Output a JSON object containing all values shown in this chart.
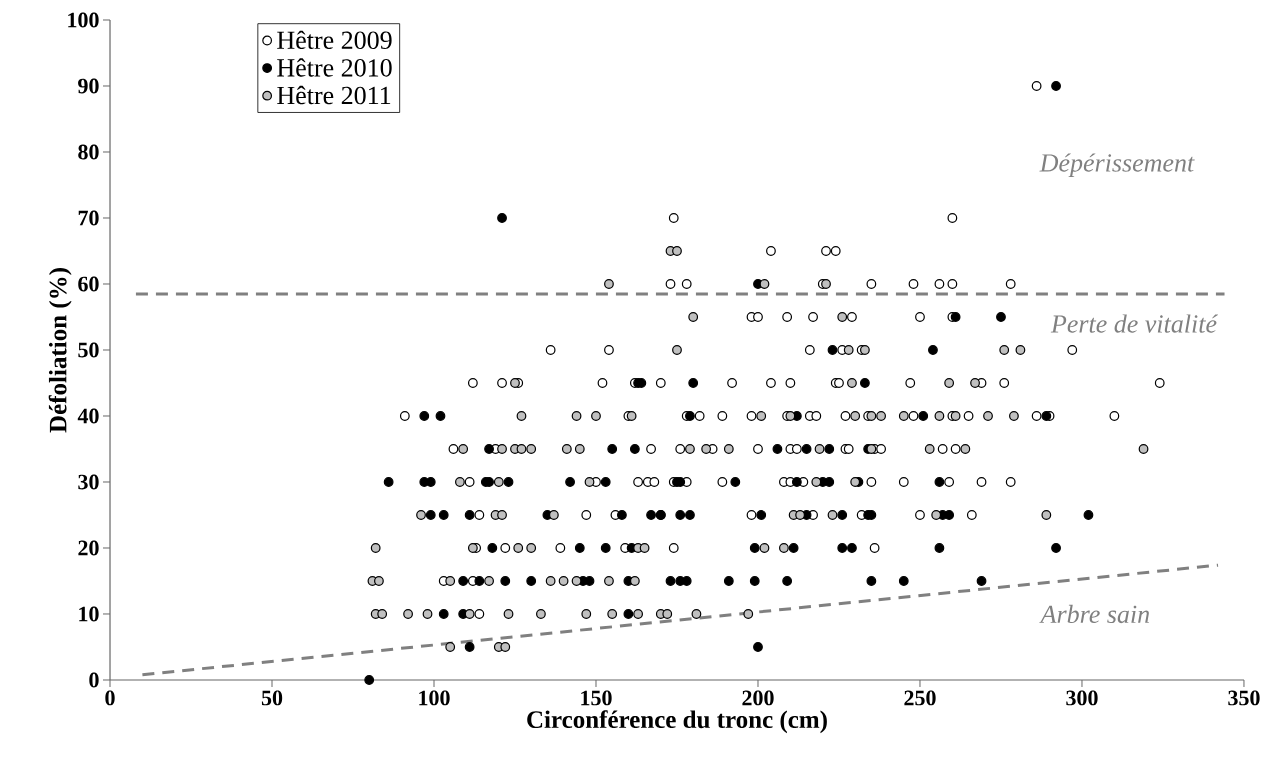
{
  "chart_data": {
    "type": "scatter",
    "xlabel": "Circonférence du tronc (cm)",
    "ylabel": "Défoliation (%)",
    "xlim": [
      0,
      350
    ],
    "ylim": [
      0,
      100
    ],
    "xticks": [
      0,
      50,
      100,
      150,
      200,
      250,
      300,
      350
    ],
    "yticks": [
      0,
      10,
      20,
      30,
      40,
      50,
      60,
      70,
      80,
      90,
      100
    ],
    "grid": false,
    "legend": "top left",
    "series": [
      {
        "name": "Hêtre 2009",
        "marker": "circle",
        "color": "#ffffff",
        "x": [
          286,
          174,
          260,
          204,
          221,
          224,
          173,
          178,
          220,
          235,
          248,
          256,
          260,
          278,
          198,
          200,
          209,
          217,
          229,
          250,
          260,
          136,
          154,
          216,
          226,
          232,
          297,
          112,
          121,
          126,
          152,
          162,
          170,
          192,
          204,
          210,
          224,
          225,
          247,
          269,
          276,
          324,
          91,
          160,
          178,
          182,
          189,
          198,
          209,
          216,
          218,
          227,
          234,
          248,
          260,
          265,
          286,
          290,
          310,
          106,
          119,
          167,
          176,
          186,
          200,
          210,
          212,
          227,
          228,
          236,
          238,
          257,
          261,
          111,
          150,
          163,
          166,
          168,
          174,
          178,
          189,
          208,
          210,
          214,
          235,
          245,
          259,
          269,
          278,
          114,
          147,
          156,
          170,
          198,
          217,
          232,
          250,
          266,
          113,
          122,
          139,
          159,
          174,
          236,
          103,
          112,
          114
        ],
        "values": [
          90,
          70,
          70,
          65,
          65,
          65,
          60,
          60,
          60,
          60,
          60,
          60,
          60,
          60,
          55,
          55,
          55,
          55,
          55,
          55,
          55,
          50,
          50,
          50,
          50,
          50,
          50,
          45,
          45,
          45,
          45,
          45,
          45,
          45,
          45,
          45,
          45,
          45,
          45,
          45,
          45,
          45,
          40,
          40,
          40,
          40,
          40,
          40,
          40,
          40,
          40,
          40,
          40,
          40,
          40,
          40,
          40,
          40,
          40,
          35,
          35,
          35,
          35,
          35,
          35,
          35,
          35,
          35,
          35,
          35,
          35,
          35,
          35,
          30,
          30,
          30,
          30,
          30,
          30,
          30,
          30,
          30,
          30,
          30,
          30,
          30,
          30,
          30,
          30,
          25,
          25,
          25,
          25,
          25,
          25,
          25,
          25,
          25,
          20,
          20,
          20,
          20,
          20,
          20,
          15,
          15,
          10
        ]
      },
      {
        "name": "Hêtre 2010",
        "marker": "circle",
        "color": "#000000",
        "x": [
          292,
          121,
          200,
          261,
          275,
          223,
          254,
          163,
          164,
          180,
          233,
          97,
          102,
          179,
          212,
          251,
          289,
          117,
          155,
          162,
          206,
          215,
          222,
          234,
          86,
          97,
          99,
          116,
          117,
          123,
          142,
          153,
          175,
          176,
          193,
          212,
          220,
          222,
          231,
          256,
          99,
          103,
          111,
          135,
          158,
          167,
          170,
          176,
          179,
          201,
          215,
          226,
          234,
          235,
          257,
          259,
          302,
          118,
          145,
          153,
          161,
          199,
          211,
          226,
          229,
          256,
          292,
          109,
          114,
          122,
          130,
          146,
          148,
          160,
          173,
          176,
          178,
          191,
          199,
          209,
          235,
          245,
          269,
          103,
          109,
          160,
          111,
          200,
          80
        ],
        "values": [
          90,
          70,
          60,
          55,
          55,
          50,
          50,
          45,
          45,
          45,
          45,
          40,
          40,
          40,
          40,
          40,
          40,
          35,
          35,
          35,
          35,
          35,
          35,
          35,
          30,
          30,
          30,
          30,
          30,
          30,
          30,
          30,
          30,
          30,
          30,
          30,
          30,
          30,
          30,
          30,
          25,
          25,
          25,
          25,
          25,
          25,
          25,
          25,
          25,
          25,
          25,
          25,
          25,
          25,
          25,
          25,
          25,
          20,
          20,
          20,
          20,
          20,
          20,
          20,
          20,
          20,
          20,
          15,
          15,
          15,
          15,
          15,
          15,
          15,
          15,
          15,
          15,
          15,
          15,
          15,
          15,
          15,
          15,
          10,
          10,
          10,
          5,
          5,
          0
        ]
      },
      {
        "name": "Hêtre 2011",
        "marker": "circle",
        "color": "#c0c0c0",
        "x": [
          173,
          175,
          154,
          202,
          221,
          180,
          226,
          175,
          228,
          233,
          276,
          281,
          125,
          229,
          259,
          267,
          127,
          144,
          150,
          161,
          201,
          210,
          230,
          235,
          238,
          245,
          256,
          261,
          271,
          279,
          109,
          121,
          125,
          127,
          130,
          141,
          145,
          179,
          184,
          191,
          219,
          235,
          253,
          264,
          319,
          108,
          120,
          148,
          218,
          230,
          96,
          119,
          121,
          137,
          211,
          213,
          223,
          255,
          289,
          82,
          112,
          126,
          130,
          163,
          165,
          202,
          208,
          81,
          83,
          105,
          117,
          136,
          140,
          144,
          154,
          162,
          82,
          84,
          92,
          98,
          111,
          123,
          133,
          147,
          155,
          163,
          170,
          172,
          181,
          197,
          105,
          120,
          122
        ],
        "values": [
          65,
          65,
          60,
          60,
          60,
          55,
          55,
          50,
          50,
          50,
          50,
          50,
          45,
          45,
          45,
          45,
          40,
          40,
          40,
          40,
          40,
          40,
          40,
          40,
          40,
          40,
          40,
          40,
          40,
          40,
          35,
          35,
          35,
          35,
          35,
          35,
          35,
          35,
          35,
          35,
          35,
          35,
          35,
          35,
          35,
          30,
          30,
          30,
          30,
          30,
          25,
          25,
          25,
          25,
          25,
          25,
          25,
          25,
          25,
          20,
          20,
          20,
          20,
          20,
          20,
          20,
          20,
          15,
          15,
          15,
          15,
          15,
          15,
          15,
          15,
          15,
          10,
          10,
          10,
          10,
          10,
          10,
          10,
          10,
          10,
          10,
          10,
          10,
          10,
          10,
          5,
          5,
          5
        ]
      },
      {
        "type": "line",
        "marker": "none",
        "line_style": "dashed",
        "color": "#808080",
        "x": [
          8,
          344
        ],
        "values": [
          58.5,
          58.5
        ]
      },
      {
        "type": "line",
        "marker": "none",
        "line_style": "dashed",
        "color": "#808080",
        "x": [
          10,
          342
        ],
        "values": [
          0.8,
          17.4
        ]
      }
    ],
    "annotations": [
      "Dépérissement",
      "Perte de vitalité",
      "Arbre sain"
    ]
  }
}
